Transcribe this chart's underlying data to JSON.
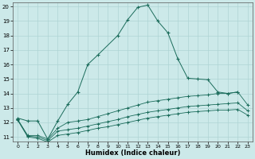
{
  "xlabel": "Humidex (Indice chaleur)",
  "bg_color": "#cce9e9",
  "grid_color": "#aed4d4",
  "line_color": "#1a6b5a",
  "xlim": [
    -0.5,
    23.5
  ],
  "ylim": [
    10.7,
    20.3
  ],
  "xticks": [
    0,
    1,
    2,
    3,
    4,
    5,
    6,
    7,
    8,
    9,
    10,
    11,
    12,
    13,
    14,
    15,
    16,
    17,
    18,
    19,
    20,
    21,
    22,
    23
  ],
  "yticks": [
    11,
    12,
    13,
    14,
    15,
    16,
    17,
    18,
    19,
    20
  ],
  "s1_x": [
    0,
    1,
    2,
    3,
    4,
    5,
    6,
    7,
    8,
    10,
    11,
    12,
    13,
    14,
    15,
    16,
    17,
    18,
    19,
    20,
    21,
    22
  ],
  "s1_y": [
    12.3,
    12.1,
    12.1,
    10.85,
    12.1,
    13.25,
    14.1,
    16.0,
    16.65,
    18.0,
    19.1,
    19.95,
    20.1,
    19.0,
    18.2,
    16.4,
    15.05,
    15.0,
    14.95,
    14.1,
    14.0,
    14.1
  ],
  "s2_x": [
    0,
    1,
    2,
    3,
    4,
    5,
    6,
    7,
    8,
    9,
    10,
    11,
    12,
    13,
    14,
    15,
    16,
    17,
    18,
    19,
    20,
    21,
    22,
    23
  ],
  "s2_y": [
    12.2,
    11.1,
    11.1,
    10.85,
    11.6,
    12.0,
    12.1,
    12.2,
    12.4,
    12.6,
    12.8,
    13.0,
    13.2,
    13.4,
    13.5,
    13.6,
    13.7,
    13.8,
    13.85,
    13.9,
    14.0,
    14.0,
    14.1,
    13.2
  ],
  "s3_x": [
    0,
    1,
    2,
    3,
    4,
    5,
    6,
    7,
    8,
    9,
    10,
    11,
    12,
    13,
    14,
    15,
    16,
    17,
    18,
    19,
    20,
    21,
    22,
    23
  ],
  "s3_y": [
    12.2,
    11.05,
    11.0,
    10.75,
    11.4,
    11.5,
    11.6,
    11.75,
    11.9,
    12.05,
    12.2,
    12.4,
    12.55,
    12.7,
    12.8,
    12.9,
    13.0,
    13.1,
    13.15,
    13.2,
    13.25,
    13.3,
    13.35,
    12.8
  ],
  "s4_x": [
    0,
    1,
    2,
    3,
    4,
    5,
    6,
    7,
    8,
    9,
    10,
    11,
    12,
    13,
    14,
    15,
    16,
    17,
    18,
    19,
    20,
    21,
    22,
    23
  ],
  "s4_y": [
    12.15,
    11.0,
    10.9,
    10.65,
    11.1,
    11.2,
    11.3,
    11.45,
    11.6,
    11.7,
    11.85,
    12.0,
    12.15,
    12.3,
    12.4,
    12.5,
    12.6,
    12.7,
    12.75,
    12.8,
    12.85,
    12.85,
    12.9,
    12.5
  ]
}
